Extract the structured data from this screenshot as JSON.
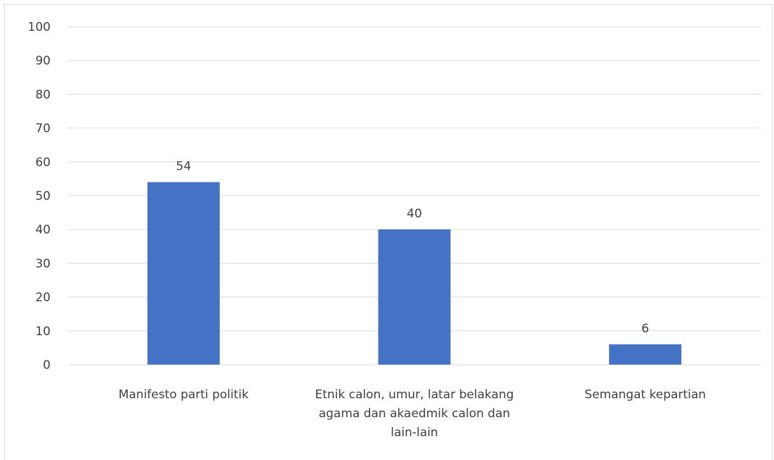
{
  "chart_data": {
    "type": "bar",
    "categories": [
      [
        "Manifesto parti politik"
      ],
      [
        "Etnik calon, umur, latar belakang",
        "agama dan akaedmik calon dan",
        "lain-lain"
      ],
      [
        "Semangat kepartian"
      ]
    ],
    "values": [
      54,
      40,
      6
    ],
    "data_labels": [
      "54",
      "40",
      "6"
    ],
    "ylim": [
      0,
      100
    ],
    "yticks": [
      0,
      10,
      20,
      30,
      40,
      50,
      60,
      70,
      80,
      90,
      100
    ],
    "grid": true,
    "bar_color": "#4472c4",
    "grid_color": "#d9d9d9",
    "text_color": "#404040"
  }
}
